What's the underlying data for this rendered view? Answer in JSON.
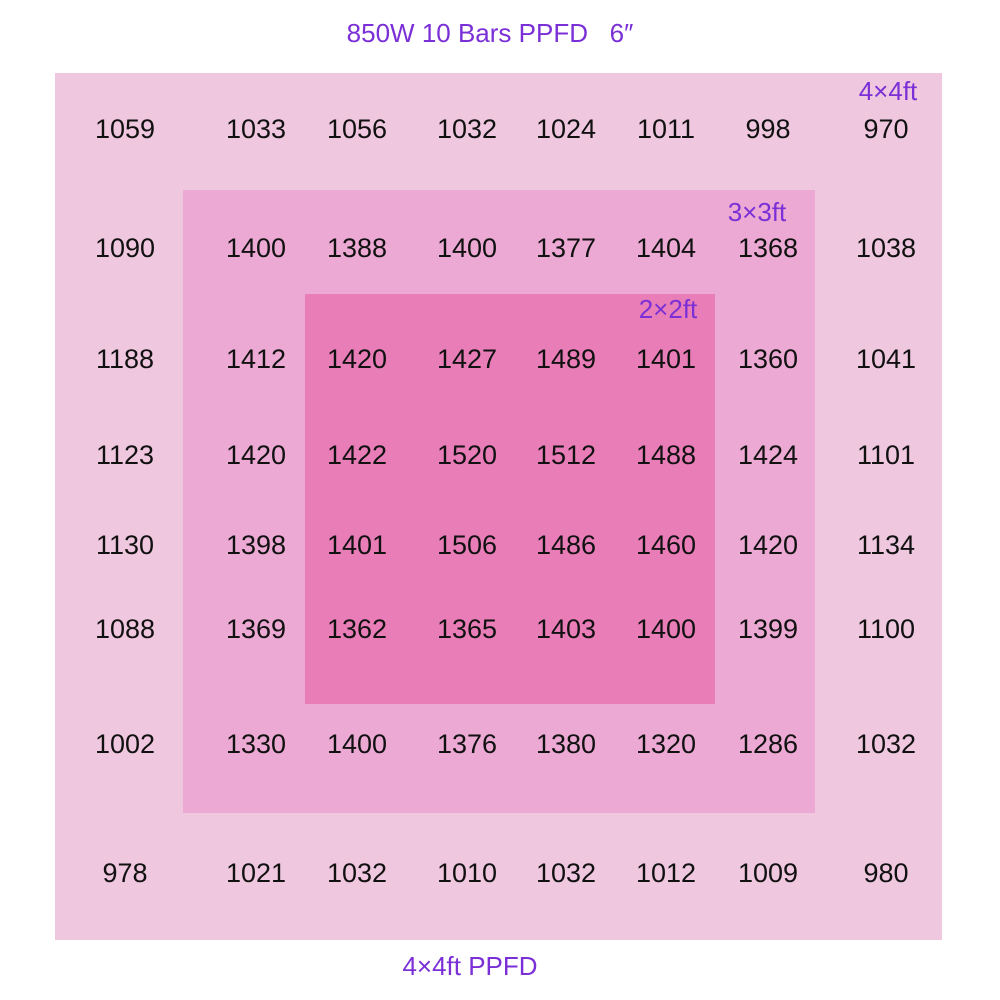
{
  "title": "850W 10 Bars PPFD   6″",
  "zones": [
    {
      "label": "4×4ft"
    },
    {
      "label": "3×3ft"
    },
    {
      "label": "2×2ft"
    }
  ],
  "footer": "4×4ft PPFD",
  "grid": {
    "rows": [
      [
        1059,
        1033,
        1056,
        1032,
        1024,
        1011,
        998,
        970
      ],
      [
        1090,
        1400,
        1388,
        1400,
        1377,
        1404,
        1368,
        1038
      ],
      [
        1188,
        1412,
        1420,
        1427,
        1489,
        1401,
        1360,
        1041
      ],
      [
        1123,
        1420,
        1422,
        1520,
        1512,
        1488,
        1424,
        1101
      ],
      [
        1130,
        1398,
        1401,
        1506,
        1486,
        1460,
        1420,
        1134
      ],
      [
        1088,
        1369,
        1362,
        1365,
        1403,
        1400,
        1399,
        1100
      ],
      [
        1002,
        1330,
        1400,
        1376,
        1380,
        1320,
        1286,
        1032
      ],
      [
        978,
        1021,
        1032,
        1010,
        1032,
        1012,
        1009,
        980
      ]
    ]
  }
}
